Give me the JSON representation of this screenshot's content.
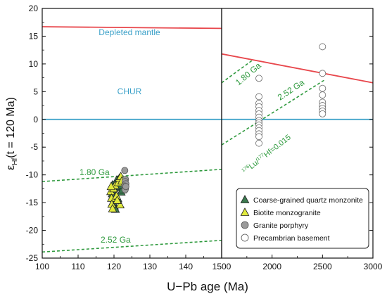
{
  "chart_data": [
    {
      "panel": "left",
      "type": "scatter",
      "xlim": [
        100,
        150
      ],
      "ylim": [
        -25,
        20
      ],
      "x_ticks": [
        "100",
        "110",
        "120",
        "130",
        "140"
      ],
      "y_ticks": [
        "20",
        "15",
        "10",
        "5",
        "0",
        "-5",
        "-10",
        "-15",
        "-20",
        "-25"
      ],
      "ylabel_main": "ε",
      "ylabel_sub": "Hf",
      "ylabel_rest": "(t = 120 Ma)",
      "reference_lines": [
        {
          "name": "Depleted mantle",
          "x": [
            100,
            150
          ],
          "y": [
            16.7,
            16.4
          ],
          "color": "#e8474c",
          "style": "solid"
        },
        {
          "name": "CHUR",
          "x": [
            100,
            150
          ],
          "y": [
            0,
            0
          ],
          "color": "#3aa0c8",
          "style": "solid"
        },
        {
          "name": "1.80 Ga",
          "x": [
            100,
            150
          ],
          "y": [
            -11.2,
            -9.0
          ],
          "color": "#2f9a3e",
          "style": "dashed"
        },
        {
          "name": "2.52 Ga",
          "x": [
            100,
            150
          ],
          "y": [
            -23.9,
            -21.8
          ],
          "color": "#2f9a3e",
          "style": "dashed"
        }
      ],
      "series": [
        {
          "name": "Coarse-grained quartz monzonite",
          "marker": "triangle",
          "color": "#3b7a4f",
          "points": [
            [
              119.6,
              -11.8
            ],
            [
              119.8,
              -12.8
            ],
            [
              120.2,
              -13.6
            ],
            [
              120.6,
              -12.3
            ],
            [
              120.9,
              -11.3
            ],
            [
              121.3,
              -12.1
            ],
            [
              121.7,
              -11.6
            ],
            [
              122.0,
              -13.1
            ],
            [
              120.1,
              -15.6
            ],
            [
              120.4,
              -16.2
            ],
            [
              119.7,
              -14.9
            ],
            [
              121.1,
              -14.3
            ],
            [
              122.3,
              -12.7
            ],
            [
              120.8,
              -10.9
            ],
            [
              121.9,
              -11.9
            ],
            [
              119.5,
              -13.4
            ]
          ]
        },
        {
          "name": "Biotite monzogranite",
          "marker": "triangle",
          "color": "#e0ea3c",
          "points": [
            [
              119.1,
              -13.0
            ],
            [
              119.3,
              -14.2
            ],
            [
              119.4,
              -15.3
            ],
            [
              119.6,
              -16.1
            ],
            [
              119.9,
              -12.5
            ],
            [
              120.3,
              -11.9
            ],
            [
              120.7,
              -13.8
            ],
            [
              121.2,
              -11.4
            ],
            [
              121.5,
              -10.6
            ],
            [
              121.9,
              -10.3
            ],
            [
              122.2,
              -11.1
            ],
            [
              121.7,
              -15.4
            ],
            [
              119.2,
              -12.1
            ],
            [
              120.9,
              -14.6
            ]
          ]
        },
        {
          "name": "Granite porphyry",
          "marker": "circle",
          "color": "#9a9a9a",
          "points": [
            [
              123.0,
              -9.2
            ],
            [
              123.2,
              -10.8
            ],
            [
              123.1,
              -11.2
            ],
            [
              123.3,
              -11.6
            ],
            [
              123.0,
              -12.0
            ],
            [
              123.2,
              -12.4
            ],
            [
              123.1,
              -12.7
            ],
            [
              123.3,
              -12.1
            ]
          ]
        }
      ]
    },
    {
      "panel": "right",
      "type": "scatter",
      "xlim": [
        1500,
        3000
      ],
      "ylim": [
        -25,
        20
      ],
      "x_ticks": [
        "1500",
        "2000",
        "2500",
        "3000"
      ],
      "reference_lines": [
        {
          "name": "",
          "x": [
            1500,
            3000
          ],
          "y": [
            11.8,
            6.6
          ],
          "color": "#e8474c",
          "style": "solid"
        },
        {
          "name": "",
          "x": [
            1500,
            3000
          ],
          "y": [
            0,
            0
          ],
          "color": "#3aa0c8",
          "style": "solid"
        },
        {
          "name": "1.80 Ga",
          "x": [
            1500,
            1800
          ],
          "y": [
            6.6,
            10.6
          ],
          "color": "#2f9a3e",
          "style": "dashed"
        },
        {
          "name": "2.52 Ga",
          "x": [
            1500,
            2520
          ],
          "y": [
            -4.6,
            7.1
          ],
          "color": "#2f9a3e",
          "style": "dashed"
        }
      ],
      "line_annotation": {
        "prefix_sup": "176",
        "part1": "Lu/",
        "mid_sup": "177",
        "part2": "Hf=0.015"
      },
      "series": [
        {
          "name": "Precambrian basement",
          "marker": "open-circle",
          "color": "#ffffff",
          "points": [
            [
              1870,
              7.4
            ],
            [
              1870,
              4.1
            ],
            [
              1870,
              2.9
            ],
            [
              1870,
              2.3
            ],
            [
              1870,
              1.6
            ],
            [
              1870,
              1.0
            ],
            [
              1870,
              0.4
            ],
            [
              1870,
              -0.2
            ],
            [
              1870,
              -0.6
            ],
            [
              1870,
              -1.0
            ],
            [
              1870,
              -1.5
            ],
            [
              1870,
              -2.0
            ],
            [
              1870,
              -2.6
            ],
            [
              1870,
              -3.1
            ],
            [
              1870,
              -4.3
            ],
            [
              2500,
              13.1
            ],
            [
              2500,
              8.3
            ],
            [
              2500,
              5.6
            ],
            [
              2500,
              4.4
            ],
            [
              2500,
              3.1
            ],
            [
              2500,
              2.5
            ],
            [
              2500,
              2.0
            ],
            [
              2500,
              1.5
            ],
            [
              2500,
              1.0
            ]
          ]
        }
      ]
    }
  ],
  "xlabel": "U−Pb  age (Ma)",
  "legend": {
    "placement": "bottom-right",
    "entries": [
      {
        "label": "Coarse-grained quartz monzonite",
        "marker": "triangle",
        "color": "#3b7a4f"
      },
      {
        "label": "Biotite monzogranite",
        "marker": "triangle",
        "color": "#e0ea3c"
      },
      {
        "label": "Granite porphyry",
        "marker": "circle",
        "color": "#9a9a9a"
      },
      {
        "label": "Precambrian basement",
        "marker": "open-circle",
        "color": "#ffffff"
      }
    ]
  }
}
